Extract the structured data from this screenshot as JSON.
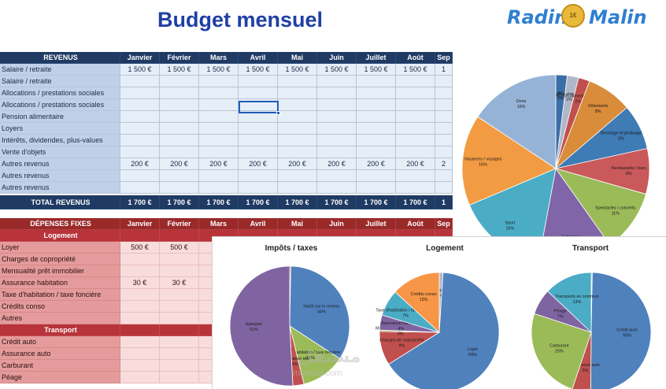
{
  "title": "Budget mensuel",
  "logo": {
    "word1": "Radin",
    "word2": "Malin",
    "coin": "1€"
  },
  "months": [
    "Janvier",
    "Février",
    "Mars",
    "Avril",
    "Mai",
    "Juin",
    "Juillet",
    "Août",
    "Sep"
  ],
  "revenus": {
    "header": "REVENUS",
    "rows": [
      {
        "label": "Salaire / retraite",
        "values": [
          "1 500 €",
          "1 500 €",
          "1 500 €",
          "1 500 €",
          "1 500 €",
          "1 500 €",
          "1 500 €",
          "1 500 €",
          "1"
        ]
      },
      {
        "label": "Salaire / retraite",
        "values": [
          "",
          "",
          "",
          "",
          "",
          "",
          "",
          "",
          ""
        ]
      },
      {
        "label": "Allocations / prestations sociales",
        "values": [
          "",
          "",
          "",
          "",
          "",
          "",
          "",
          "",
          ""
        ]
      },
      {
        "label": "Allocations / prestations sociales",
        "values": [
          "",
          "",
          "",
          "",
          "",
          "",
          "",
          "",
          ""
        ]
      },
      {
        "label": "Pension alimentaire",
        "values": [
          "",
          "",
          "",
          "",
          "",
          "",
          "",
          "",
          ""
        ]
      },
      {
        "label": "Loyers",
        "values": [
          "",
          "",
          "",
          "",
          "",
          "",
          "",
          "",
          ""
        ]
      },
      {
        "label": "Intérêts, dividendes, plus-values",
        "values": [
          "",
          "",
          "",
          "",
          "",
          "",
          "",
          "",
          ""
        ]
      },
      {
        "label": "Vente d'objets",
        "values": [
          "",
          "",
          "",
          "",
          "",
          "",
          "",
          "",
          ""
        ]
      },
      {
        "label": "Autres revenus",
        "values": [
          "200 €",
          "200 €",
          "200 €",
          "200 €",
          "200 €",
          "200 €",
          "200 €",
          "200 €",
          "2"
        ]
      },
      {
        "label": "Autres revenus",
        "values": [
          "",
          "",
          "",
          "",
          "",
          "",
          "",
          "",
          ""
        ]
      },
      {
        "label": "Autres revenus",
        "values": [
          "",
          "",
          "",
          "",
          "",
          "",
          "",
          "",
          ""
        ]
      }
    ],
    "total_label": "TOTAL REVENUS",
    "totals": [
      "1 700 €",
      "1 700 €",
      "1 700 €",
      "1 700 €",
      "1 700 €",
      "1 700 €",
      "1 700 €",
      "1 700 €",
      "1"
    ]
  },
  "depenses": {
    "header": "DÉPENSES FIXES",
    "months": [
      "Janvier",
      "Février",
      "Mars",
      "Avril",
      "Mai",
      "Juin",
      "Juillet",
      "Août",
      "Sep"
    ],
    "logement_label": "Logement",
    "logement_rows": [
      {
        "label": "Loyer",
        "values": [
          "500 €",
          "500 €",
          "5",
          "",
          "",
          "",
          "",
          "",
          ""
        ]
      },
      {
        "label": "Charges de copropriété",
        "values": [
          "",
          "",
          "",
          "",
          "",
          "",
          "",
          "",
          ""
        ]
      },
      {
        "label": "Mensualité prêt immobilier",
        "values": [
          "",
          "",
          "",
          "",
          "",
          "",
          "",
          "",
          ""
        ]
      },
      {
        "label": "Assurance habitation",
        "values": [
          "30 €",
          "30 €",
          "",
          "",
          "",
          "",
          "",
          "",
          ""
        ]
      },
      {
        "label": "Taxe d'habitation / taxe foncière",
        "values": [
          "",
          "",
          "",
          "",
          "",
          "",
          "",
          "",
          ""
        ]
      },
      {
        "label": "Crédits conso",
        "values": [
          "",
          "",
          "",
          "",
          "",
          "",
          "",
          "",
          ""
        ]
      },
      {
        "label": "Autres",
        "values": [
          "",
          "",
          "",
          "",
          "",
          "",
          "",
          "",
          ""
        ]
      }
    ],
    "transport_label": "Transport",
    "transport_rows": [
      {
        "label": "Crédit auto",
        "values": [
          "",
          "",
          "",
          "",
          "",
          "",
          "",
          "",
          ""
        ]
      },
      {
        "label": "Assurance auto",
        "values": [
          "",
          "",
          "",
          "",
          "",
          "",
          "",
          "",
          ""
        ]
      },
      {
        "label": "Carburant",
        "values": [
          "",
          "",
          "",
          "",
          "",
          "",
          "",
          "",
          ""
        ]
      },
      {
        "label": "Péage",
        "values": [
          "",
          "",
          "",
          "",
          "",
          "",
          "",
          "",
          ""
        ]
      }
    ]
  },
  "chart_data": [
    {
      "type": "pie",
      "title": "",
      "slices": [
        {
          "label": "Frais de santé",
          "pct": "2%",
          "value": 2,
          "color": "#3b6fa8"
        },
        {
          "label": "Courses alimentaires",
          "pct": "2%",
          "value": 2,
          "color": "#b0b7c9"
        },
        {
          "label": "Courses non-alimentaires / matériel",
          "pct": "2%",
          "value": 2,
          "color": "#c0504d"
        },
        {
          "label": "Vêtements",
          "pct": "8%",
          "value": 8,
          "color": "#d98c3a"
        },
        {
          "label": "Bricolage et jardinage",
          "pct": "8%",
          "value": 8,
          "color": "#3f7bb5"
        },
        {
          "label": "Restaurants / bars",
          "pct": "8%",
          "value": 8,
          "color": "#c9595a"
        },
        {
          "label": "Spectacles / concerts",
          "pct": "11%",
          "value": 11,
          "color": "#9bbb59"
        },
        {
          "label": "Esthétique",
          "pct": "13%",
          "value": 13,
          "color": "#8066a8"
        },
        {
          "label": "Sport",
          "pct": "16%",
          "value": 16,
          "color": "#4bacc6"
        },
        {
          "label": "Vacances / voyages",
          "pct": "16%",
          "value": 16,
          "color": "#f29b43"
        },
        {
          "label": "Dons",
          "pct": "16%",
          "value": 16,
          "color": "#95b3d7"
        }
      ]
    },
    {
      "type": "pie",
      "title": "Impôts / taxes",
      "slices": [
        {
          "label": "Contribution au alimentaire",
          "pct": "0%",
          "value": 0.3,
          "color": "#c0504d"
        },
        {
          "label": "Impôt sur le revenu",
          "pct": "34%",
          "value": 34,
          "color": "#4f81bd"
        },
        {
          "label": "Taxe d'habitation / taxe foncière",
          "pct": "12%",
          "value": 12,
          "color": "#9bbb59"
        },
        {
          "label": "Redevance télé",
          "pct": "3%",
          "value": 3,
          "color": "#c0504d"
        },
        {
          "label": "Epargne",
          "pct": "51%",
          "value": 51,
          "color": "#8064a2"
        }
      ]
    },
    {
      "type": "pie",
      "title": "Logement",
      "slices": [
        {
          "label": "Autres",
          "pct": "1%",
          "value": 1,
          "color": "#b0b7c9"
        },
        {
          "label": "Loyer",
          "pct": "64%",
          "value": 64,
          "color": "#4f81bd"
        },
        {
          "label": "Charges de copropriété",
          "pct": "9%",
          "value": 9,
          "color": "#c0504d"
        },
        {
          "label": "Mensualité prêt immobilier",
          "pct": "0%",
          "value": 0.4,
          "color": "#9bbb59"
        },
        {
          "label": "Assurance habitation",
          "pct": "4%",
          "value": 4,
          "color": "#8064a2"
        },
        {
          "label": "Taxe d'habitation / taxe foncière",
          "pct": "7%",
          "value": 7,
          "color": "#4bacc6"
        },
        {
          "label": "Crédits conso",
          "pct": "13%",
          "value": 13,
          "color": "#f79646"
        }
      ]
    },
    {
      "type": "pie",
      "title": "Transport",
      "slices": [
        {
          "label": "Autres",
          "pct": "0%",
          "value": 0.3,
          "color": "#b0b7c9"
        },
        {
          "label": "Crédit auto",
          "pct": "50%",
          "value": 50,
          "color": "#4f81bd"
        },
        {
          "label": "Assurance auto",
          "pct": "5%",
          "value": 5,
          "color": "#c0504d"
        },
        {
          "label": "Carburant",
          "pct": "25%",
          "value": 25,
          "color": "#9bbb59"
        },
        {
          "label": "Péage",
          "pct": "7%",
          "value": 7,
          "color": "#8064a2"
        },
        {
          "label": "Transports en commun",
          "pct": "13%",
          "value": 13,
          "color": "#4bacc6"
        }
      ]
    }
  ],
  "watermark": {
    "text": "مستقل",
    "sub": "mostaql.com"
  }
}
